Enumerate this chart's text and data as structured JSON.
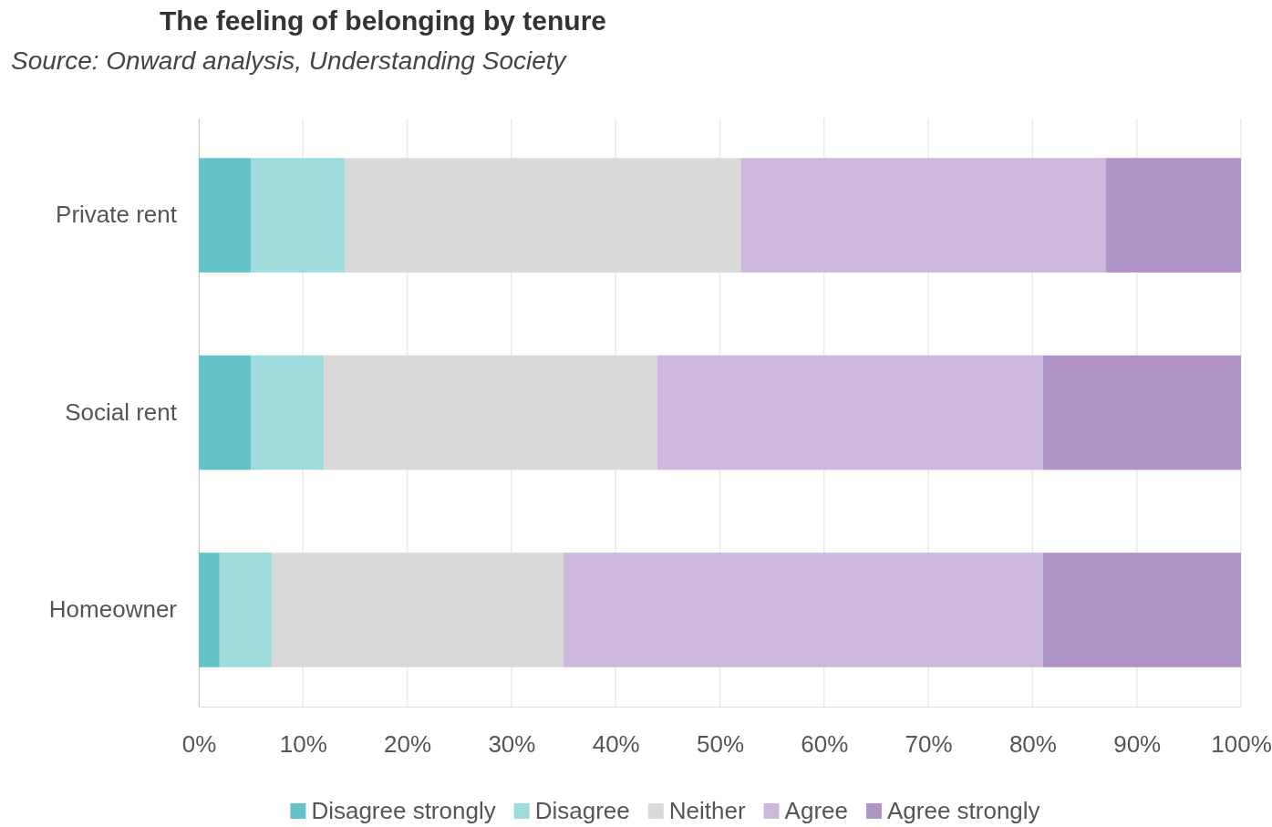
{
  "chart_data": {
    "type": "bar",
    "orientation": "horizontal",
    "stacked": true,
    "title": "The feeling of belonging by tenure",
    "subtitle": "Source: Onward analysis, Understanding Society",
    "categories": [
      "Private rent",
      "Social rent",
      "Homeowner"
    ],
    "series": [
      {
        "name": "Disagree strongly",
        "color": "#63c3c6",
        "values": [
          5,
          5,
          2
        ]
      },
      {
        "name": "Disagree",
        "color": "#a0dbdb",
        "values": [
          9,
          7,
          5
        ]
      },
      {
        "name": "Neither",
        "color": "#d9d9d9",
        "values": [
          38,
          32,
          28
        ]
      },
      {
        "name": "Agree",
        "color": "#cbb8dc",
        "values": [
          35,
          37,
          46
        ]
      },
      {
        "name": "Agree strongly",
        "color": "#b094c8",
        "values": [
          13,
          19,
          19
        ]
      }
    ],
    "xlim": [
      0,
      100
    ],
    "xticks": [
      {
        "value": 0,
        "label": "0%"
      },
      {
        "value": 10,
        "label": "10%"
      },
      {
        "value": 20,
        "label": "20%"
      },
      {
        "value": 30,
        "label": "30%"
      },
      {
        "value": 40,
        "label": "40%"
      },
      {
        "value": 50,
        "label": "50%"
      },
      {
        "value": 60,
        "label": "60%"
      },
      {
        "value": 70,
        "label": "70%"
      },
      {
        "value": 80,
        "label": "80%"
      },
      {
        "value": 90,
        "label": "90%"
      },
      {
        "value": 100,
        "label": "100%"
      }
    ],
    "grid": "x",
    "legend": "bottom"
  }
}
